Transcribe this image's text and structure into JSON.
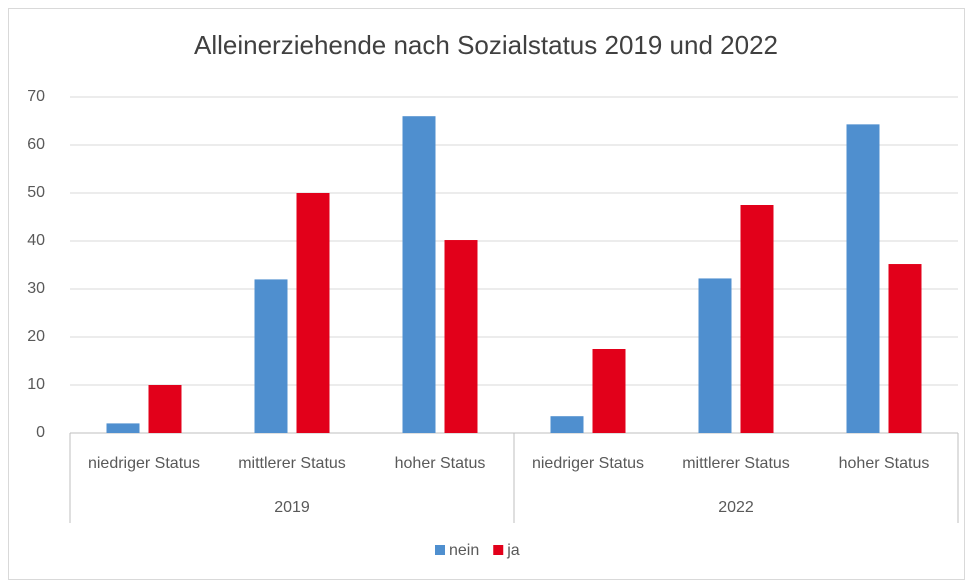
{
  "chart_data": {
    "type": "bar",
    "title": "Alleinerziehende nach Sozialstatus 2019 und 2022",
    "categories": [
      "niedriger Status",
      "mittlerer Status",
      "hoher Status",
      "niedriger Status",
      "mittlerer Status",
      "hoher Status"
    ],
    "groups": [
      "2019",
      "2022"
    ],
    "series": [
      {
        "name": "nein",
        "color": "#4f8fcf",
        "values": [
          2,
          32,
          66,
          3.5,
          32.2,
          64.3
        ]
      },
      {
        "name": "ja",
        "color": "#e2001a",
        "values": [
          10,
          50,
          40.2,
          17.5,
          47.5,
          35.2
        ]
      }
    ],
    "ylim": [
      0,
      70
    ],
    "yticks": [
      0,
      10,
      20,
      30,
      40,
      50,
      60,
      70
    ],
    "grid": true,
    "legend": "bottom"
  }
}
